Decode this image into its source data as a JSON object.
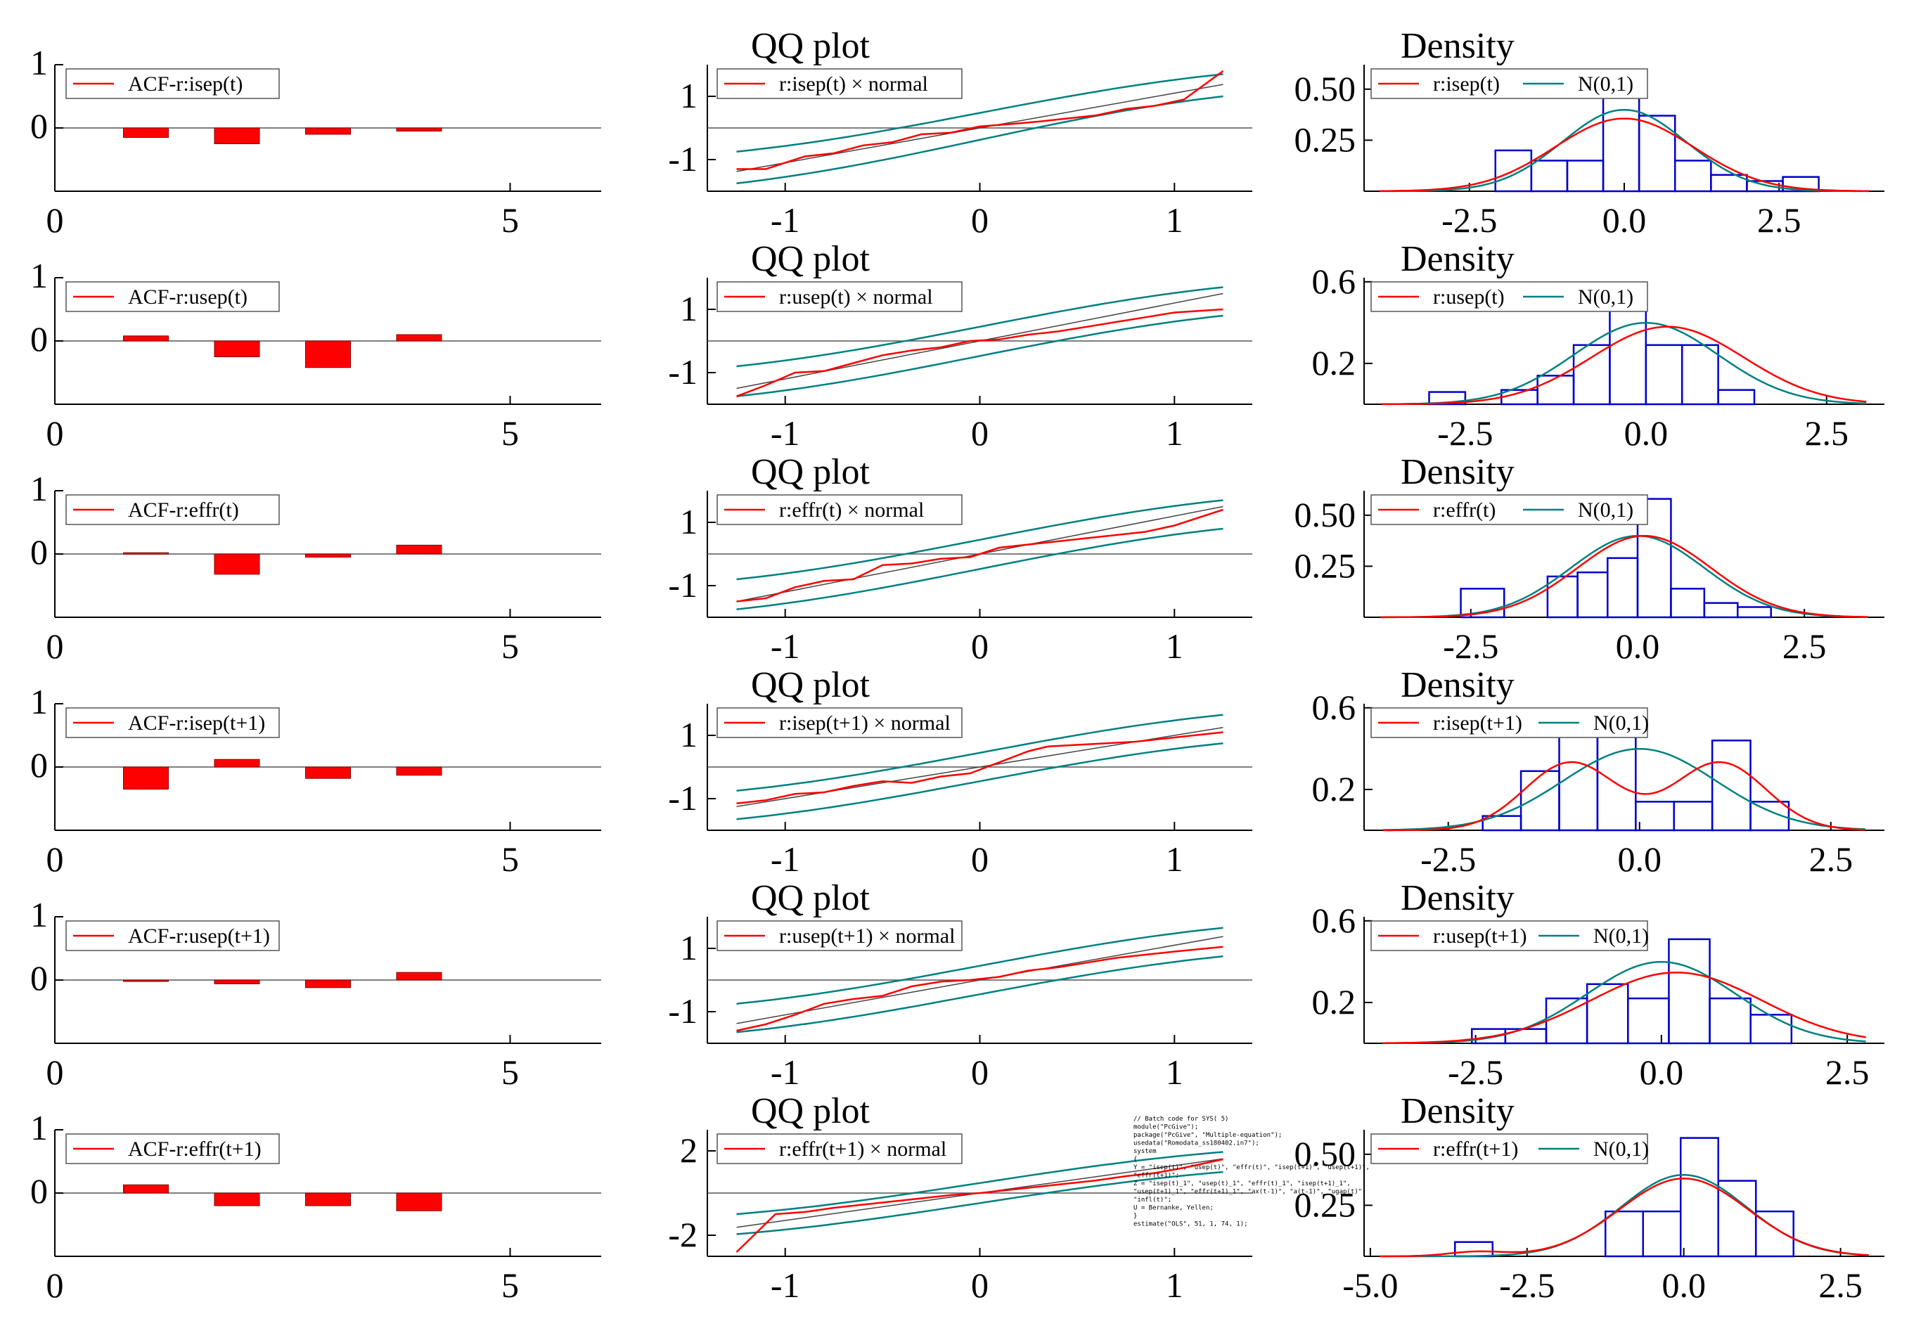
{
  "figure": {
    "colors": {
      "residual": "#ff0000",
      "normal": "#008080",
      "hist": "#0000cc",
      "axis": "#000000",
      "ref": "#444444"
    }
  },
  "chart_data": [
    {
      "type": "bar",
      "kind": "acf",
      "legend": "ACF-r:isep(t)",
      "lags": [
        1,
        2,
        3,
        4
      ],
      "values": [
        -0.15,
        -0.25,
        -0.1,
        -0.05
      ],
      "xlim": [
        0,
        6
      ],
      "ylim": [
        -1,
        1
      ],
      "xticks": [
        "0",
        "5"
      ],
      "yticks": [
        "1",
        "0"
      ]
    },
    {
      "type": "bar",
      "kind": "acf",
      "legend": "ACF-r:usep(t)",
      "lags": [
        1,
        2,
        3,
        4
      ],
      "values": [
        0.08,
        -0.25,
        -0.42,
        0.1
      ],
      "xlim": [
        0,
        6
      ],
      "ylim": [
        -1,
        1
      ],
      "xticks": [
        "0",
        "5"
      ],
      "yticks": [
        "1",
        "0"
      ]
    },
    {
      "type": "bar",
      "kind": "acf",
      "legend": "ACF-r:effr(t)",
      "lags": [
        1,
        2,
        3,
        4
      ],
      "values": [
        0.02,
        -0.32,
        -0.05,
        0.14
      ],
      "xlim": [
        0,
        6
      ],
      "ylim": [
        -1,
        1
      ],
      "xticks": [
        "0",
        "5"
      ],
      "yticks": [
        "1",
        "0"
      ]
    },
    {
      "type": "bar",
      "kind": "acf",
      "legend": "ACF-r:isep(t+1)",
      "lags": [
        1,
        2,
        3,
        4
      ],
      "values": [
        -0.35,
        0.12,
        -0.18,
        -0.13
      ],
      "xlim": [
        0,
        6
      ],
      "ylim": [
        -1,
        1
      ],
      "xticks": [
        "0",
        "5"
      ],
      "yticks": [
        "1",
        "0"
      ]
    },
    {
      "type": "bar",
      "kind": "acf",
      "legend": "ACF-r:usep(t+1)",
      "lags": [
        1,
        2,
        3,
        4
      ],
      "values": [
        -0.02,
        -0.06,
        -0.12,
        0.12
      ],
      "xlim": [
        0,
        6
      ],
      "ylim": [
        -1,
        1
      ],
      "xticks": [
        "0",
        "5"
      ],
      "yticks": [
        "1",
        "0"
      ]
    },
    {
      "type": "bar",
      "kind": "acf",
      "legend": "ACF-r:effr(t+1)",
      "lags": [
        1,
        2,
        3,
        4
      ],
      "values": [
        0.13,
        -0.2,
        -0.2,
        -0.28
      ],
      "xlim": [
        0,
        6
      ],
      "ylim": [
        -1,
        1
      ],
      "xticks": [
        "0",
        "5"
      ],
      "yticks": [
        "1",
        "0"
      ]
    },
    {
      "type": "line",
      "kind": "qq",
      "title": "QQ plot",
      "legend": "r:isep(t) × normal",
      "xlim": [
        -1.4,
        1.4
      ],
      "ylim": [
        -2,
        2
      ],
      "xticks": [
        -1,
        0,
        1
      ],
      "xtick_labels": [
        "-1",
        "0",
        "1"
      ],
      "yticks": [
        1,
        -1
      ],
      "ytick_labels": [
        "1",
        "-1"
      ],
      "x": [
        -1.25,
        -1.1,
        -1.0,
        -0.9,
        -0.75,
        -0.6,
        -0.45,
        -0.3,
        -0.15,
        0.0,
        0.15,
        0.3,
        0.45,
        0.6,
        0.75,
        0.9,
        1.05,
        1.25
      ],
      "y": [
        -1.3,
        -1.3,
        -1.1,
        -0.9,
        -0.8,
        -0.55,
        -0.45,
        -0.2,
        -0.15,
        0.05,
        0.12,
        0.2,
        0.3,
        0.4,
        0.6,
        0.7,
        0.9,
        1.8
      ],
      "ref_slope": 1.1,
      "band_low": [
        -1.75,
        1.0
      ],
      "band_high": [
        -0.75,
        1.7
      ]
    },
    {
      "type": "line",
      "kind": "qq",
      "title": "QQ plot",
      "legend": "r:usep(t) × normal",
      "xlim": [
        -1.4,
        1.4
      ],
      "ylim": [
        -2,
        2
      ],
      "xticks": [
        -1,
        0,
        1
      ],
      "xtick_labels": [
        "-1",
        "0",
        "1"
      ],
      "yticks": [
        1,
        -1
      ],
      "ytick_labels": [
        "1",
        "-1"
      ],
      "x": [
        -1.25,
        -1.1,
        -0.95,
        -0.8,
        -0.65,
        -0.5,
        -0.35,
        -0.2,
        -0.05,
        0.1,
        0.25,
        0.4,
        0.55,
        0.7,
        0.85,
        1.0,
        1.25
      ],
      "y": [
        -1.75,
        -1.4,
        -1.0,
        -0.95,
        -0.7,
        -0.45,
        -0.3,
        -0.2,
        0.0,
        0.05,
        0.2,
        0.3,
        0.45,
        0.6,
        0.75,
        0.9,
        1.0
      ],
      "ref_slope": 1.2,
      "band_low": [
        -1.75,
        0.8
      ],
      "band_high": [
        -0.8,
        1.7
      ]
    },
    {
      "type": "line",
      "kind": "qq",
      "title": "QQ plot",
      "legend": "r:effr(t) × normal",
      "xlim": [
        -1.4,
        1.4
      ],
      "ylim": [
        -2,
        2
      ],
      "xticks": [
        -1,
        0,
        1
      ],
      "xtick_labels": [
        "-1",
        "0",
        "1"
      ],
      "yticks": [
        1,
        -1
      ],
      "ytick_labels": [
        "1",
        "-1"
      ],
      "x": [
        -1.25,
        -1.1,
        -0.95,
        -0.8,
        -0.65,
        -0.5,
        -0.35,
        -0.2,
        -0.05,
        0.1,
        0.25,
        0.4,
        0.55,
        0.7,
        0.85,
        1.0,
        1.25
      ],
      "y": [
        -1.5,
        -1.4,
        -1.05,
        -0.85,
        -0.8,
        -0.35,
        -0.3,
        -0.15,
        -0.1,
        0.2,
        0.3,
        0.4,
        0.5,
        0.6,
        0.7,
        0.9,
        1.4
      ],
      "ref_slope": 1.2,
      "band_low": [
        -1.75,
        0.8
      ],
      "band_high": [
        -0.8,
        1.7
      ]
    },
    {
      "type": "line",
      "kind": "qq",
      "title": "QQ plot",
      "legend": "r:isep(t+1) × normal",
      "xlim": [
        -1.4,
        1.4
      ],
      "ylim": [
        -2,
        2
      ],
      "xticks": [
        -1,
        0,
        1
      ],
      "xtick_labels": [
        "-1",
        "0",
        "1"
      ],
      "yticks": [
        1,
        -1
      ],
      "ytick_labels": [
        "1",
        "-1"
      ],
      "x": [
        -1.25,
        -1.1,
        -0.95,
        -0.8,
        -0.65,
        -0.5,
        -0.35,
        -0.2,
        -0.05,
        0.1,
        0.25,
        0.35,
        0.5,
        0.65,
        0.8,
        0.95,
        1.25
      ],
      "y": [
        -1.15,
        -1.05,
        -0.85,
        -0.8,
        -0.6,
        -0.45,
        -0.5,
        -0.3,
        -0.2,
        0.15,
        0.5,
        0.65,
        0.7,
        0.75,
        0.8,
        0.9,
        1.1
      ],
      "ref_slope": 1.0,
      "band_low": [
        -1.65,
        0.75
      ],
      "band_high": [
        -0.75,
        1.65
      ]
    },
    {
      "type": "line",
      "kind": "qq",
      "title": "QQ plot",
      "legend": "r:usep(t+1) × normal",
      "xlim": [
        -1.4,
        1.4
      ],
      "ylim": [
        -2,
        2
      ],
      "xticks": [
        -1,
        0,
        1
      ],
      "xtick_labels": [
        "-1",
        "0",
        "1"
      ],
      "yticks": [
        1,
        -1
      ],
      "ytick_labels": [
        "1",
        "-1"
      ],
      "x": [
        -1.25,
        -1.1,
        -0.95,
        -0.8,
        -0.65,
        -0.5,
        -0.35,
        -0.2,
        -0.05,
        0.1,
        0.25,
        0.4,
        0.55,
        0.7,
        0.85,
        1.0,
        1.25
      ],
      "y": [
        -1.6,
        -1.4,
        -1.1,
        -0.75,
        -0.6,
        -0.5,
        -0.2,
        -0.05,
        0.0,
        0.1,
        0.3,
        0.4,
        0.55,
        0.7,
        0.8,
        0.9,
        1.05
      ],
      "ref_slope": 1.1,
      "band_low": [
        -1.65,
        0.75
      ],
      "band_high": [
        -0.75,
        1.65
      ]
    },
    {
      "type": "line",
      "kind": "qq",
      "title": "QQ plot",
      "legend": "r:effr(t+1) × normal",
      "xlim": [
        -1.4,
        1.4
      ],
      "ylim": [
        -3,
        3
      ],
      "xticks": [
        -1,
        0,
        1
      ],
      "xtick_labels": [
        "-1",
        "0",
        "1"
      ],
      "yticks": [
        2,
        -2
      ],
      "ytick_labels": [
        "2",
        "-2"
      ],
      "x": [
        -1.25,
        -1.05,
        -0.9,
        -0.75,
        -0.6,
        -0.45,
        -0.3,
        -0.15,
        0.0,
        0.15,
        0.3,
        0.45,
        0.6,
        0.75,
        0.9,
        1.05,
        1.25
      ],
      "y": [
        -2.8,
        -1.0,
        -0.9,
        -0.7,
        -0.55,
        -0.4,
        -0.25,
        -0.1,
        0.0,
        0.15,
        0.3,
        0.45,
        0.6,
        0.8,
        0.95,
        1.2,
        1.6
      ],
      "ref_slope": 1.3,
      "band_low": [
        -1.95,
        1.0
      ],
      "band_high": [
        -1.0,
        1.95
      ]
    },
    {
      "type": "area",
      "kind": "density",
      "title": "Density",
      "legend_residual": "r:isep(t)",
      "legend_normal": "N(0,1)",
      "xlim": [
        -4.2,
        4.2
      ],
      "ylim": [
        0,
        0.62
      ],
      "xticks": [
        -2.5,
        0,
        2.5
      ],
      "xtick_labels": [
        "-2.5",
        "0.0",
        "2.5"
      ],
      "yticks": [
        0.5,
        0.25
      ],
      "ytick_labels": [
        "0.50",
        "0.25"
      ],
      "bin_edges": [
        -2.08,
        -1.5,
        -0.92,
        -0.34,
        0.24,
        0.82,
        1.4,
        1.98,
        2.56,
        3.14
      ],
      "hist": [
        0.2,
        0.15,
        0.15,
        0.58,
        0.37,
        0.15,
        0.08,
        0.05,
        0.07
      ],
      "kde_mu": 0.0,
      "kde_sd": 1.12,
      "kde_mix": []
    },
    {
      "type": "area",
      "kind": "density",
      "title": "Density",
      "legend_residual": "r:usep(t)",
      "legend_normal": "N(0,1)",
      "xlim": [
        -3.9,
        3.3
      ],
      "ylim": [
        0,
        0.62
      ],
      "xticks": [
        -2.5,
        0,
        2.5
      ],
      "xtick_labels": [
        "-2.5",
        "0.0",
        "2.5"
      ],
      "yticks": [
        0.6,
        0.2
      ],
      "ytick_labels": [
        "0.6",
        "0.2"
      ],
      "bin_edges": [
        -3.0,
        -2.5,
        -2.0,
        -1.5,
        -1.0,
        -0.5,
        0.0,
        0.5,
        1.0,
        1.5,
        2.0
      ],
      "hist": [
        0.06,
        0.0,
        0.07,
        0.14,
        0.29,
        0.51,
        0.29,
        0.29,
        0.07,
        0.0
      ],
      "kde_mu": 0.3,
      "kde_sd": 1.05,
      "kde_mix": []
    },
    {
      "type": "area",
      "kind": "density",
      "title": "Density",
      "legend_residual": "r:effr(t)",
      "legend_normal": "N(0,1)",
      "xlim": [
        -4.1,
        3.7
      ],
      "ylim": [
        0,
        0.62
      ],
      "xticks": [
        -2.5,
        0,
        2.5
      ],
      "xtick_labels": [
        "-2.5",
        "0.0",
        "2.5"
      ],
      "yticks": [
        0.5,
        0.25
      ],
      "ytick_labels": [
        "0.50",
        "0.25"
      ],
      "bin_edges": [
        -2.65,
        -2.0,
        -1.35,
        -0.9,
        -0.45,
        0.0,
        0.5,
        1.0,
        1.5,
        2.0,
        2.5
      ],
      "hist": [
        0.14,
        0.0,
        0.2,
        0.22,
        0.29,
        0.58,
        0.14,
        0.07,
        0.05,
        0.0
      ],
      "kde_mu": 0.1,
      "kde_sd": 1.0,
      "kde_mix": []
    },
    {
      "type": "area",
      "kind": "density",
      "title": "Density",
      "legend_residual": "r:isep(t+1)",
      "legend_normal": "N(0,1)",
      "xlim": [
        -3.6,
        3.2
      ],
      "ylim": [
        0,
        0.62
      ],
      "xticks": [
        -2.5,
        0,
        2.5
      ],
      "xtick_labels": [
        "-2.5",
        "0.0",
        "2.5"
      ],
      "yticks": [
        0.6,
        0.2
      ],
      "ytick_labels": [
        "0.6",
        "0.2"
      ],
      "bin_edges": [
        -2.05,
        -1.55,
        -1.05,
        -0.55,
        -0.05,
        0.45,
        0.95,
        1.45,
        1.95
      ],
      "hist": [
        0.07,
        0.29,
        0.51,
        0.51,
        0.14,
        0.14,
        0.44,
        0.14
      ],
      "kde_mu": 0,
      "kde_sd": 0,
      "kde_mix": [
        [
          -0.9,
          0.6,
          0.5
        ],
        [
          1.05,
          0.6,
          0.5
        ]
      ]
    },
    {
      "type": "area",
      "kind": "density",
      "title": "Density",
      "legend_residual": "r:usep(t+1)",
      "legend_normal": "N(0,1)",
      "xlim": [
        -4.0,
        3.0
      ],
      "ylim": [
        0,
        0.62
      ],
      "xticks": [
        -2.5,
        0,
        2.5
      ],
      "xtick_labels": [
        "-2.5",
        "0.0",
        "2.5"
      ],
      "yticks": [
        0.6,
        0.2
      ],
      "ytick_labels": [
        "0.6",
        "0.2"
      ],
      "bin_edges": [
        -2.55,
        -2.1,
        -1.55,
        -1.0,
        -0.45,
        0.1,
        0.65,
        1.2,
        1.75,
        2.3
      ],
      "hist": [
        0.07,
        0.07,
        0.22,
        0.29,
        0.22,
        0.51,
        0.22,
        0.14,
        0.0
      ],
      "kde_mu": 0.2,
      "kde_sd": 1.15,
      "kde_mix": []
    },
    {
      "type": "area",
      "kind": "density",
      "title": "Density",
      "legend_residual": "r:effr(t+1)",
      "legend_normal": "N(0,1)",
      "xlim": [
        -5.1,
        3.2
      ],
      "ylim": [
        0,
        0.62
      ],
      "xticks": [
        -5,
        -2.5,
        0,
        2.5
      ],
      "xtick_labels": [
        "-5.0",
        "-2.5",
        "0.0",
        "2.5"
      ],
      "yticks": [
        0.5,
        0.25
      ],
      "ytick_labels": [
        "0.50",
        "0.25"
      ],
      "bin_edges": [
        -3.65,
        -3.05,
        -2.45,
        -1.85,
        -1.25,
        -0.65,
        -0.05,
        0.55,
        1.15,
        1.75,
        2.35
      ],
      "hist": [
        0.07,
        0.0,
        0.0,
        0.0,
        0.22,
        0.22,
        0.58,
        0.37,
        0.22,
        0.0
      ],
      "kde_mu": 0.0,
      "kde_sd": 1.02,
      "kde_mix": [
        [
          -3.3,
          0.45,
          0.025
        ],
        [
          0.0,
          1.02,
          0.975
        ]
      ]
    }
  ],
  "batch_code": [
    "// Batch code for SYS( 5)",
    "module(\"PcGive\");",
    "package(\"PcGive\", \"Multiple-equation\");",
    "usedata(\"Romodata_ss180402.in7\");",
    "system",
    "{",
    "  Y = \"isep(t)\", \"usep(t)\", \"effr(t)\", \"isep(t+1)\", \"usep(t+1)\",",
    "      \"effr(t+1)\";",
    "  Z = \"isep(t)_1\", \"usep(t)_1\", \"effr(t)_1\", \"isep(t+1)_1\",",
    "      \"usep(t+1)_1\", \"effr(t+1)_1\", \"ax(t-1)\", \"a(t-1)\", \"ugap(t)\",",
    "      \"infl(t)\";",
    "  U = Bernanke, Yellen;",
    "}",
    "estimate(\"OLS\", 51, 1, 74, 1);"
  ]
}
